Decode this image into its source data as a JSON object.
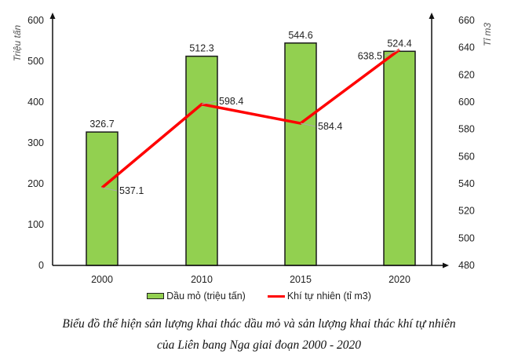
{
  "chart_data": {
    "type": "bar+line",
    "title": "Biểu đồ thể hiện sản lượng khai thác dầu mỏ và sản lượng khai thác khí tự nhiên của Liên bang Nga giai đoạn 2000 - 2020",
    "categories": [
      "2000",
      "2010",
      "2015",
      "2020"
    ],
    "series": [
      {
        "name": "Dầu mỏ (triệu tấn)",
        "type": "bar",
        "axis": "left",
        "color": "#92d050",
        "values": [
          326.7,
          512.3,
          544.6,
          524.4
        ]
      },
      {
        "name": "Khí tự nhiên (tỉ m3)",
        "type": "line",
        "axis": "right",
        "color": "#ff0000",
        "values": [
          537.1,
          598.4,
          584.4,
          638.5
        ]
      }
    ],
    "left_axis": {
      "label": "Triệu tấn",
      "ylim": [
        0,
        600
      ],
      "ticks": [
        0,
        100,
        200,
        300,
        400,
        500,
        600
      ]
    },
    "right_axis": {
      "label": "Tỉ m3",
      "ylim": [
        480,
        660
      ],
      "ticks": [
        480,
        500,
        520,
        540,
        560,
        580,
        600,
        620,
        640,
        660
      ]
    },
    "grid": false,
    "legend_position": "bottom"
  },
  "axes": {
    "left_title": "Triệu tấn",
    "right_title": "Tỉ m3"
  },
  "legend": {
    "bar_label": "Dầu mỏ (triệu tấn)",
    "line_label": "Khí tự nhiên (tỉ m3)"
  },
  "caption": {
    "line1": "Biểu đồ thể hiện sản lượng khai thác dầu mỏ và sản lượng khai thác khí tự nhiên",
    "line2": "của Liên bang Nga giai đoạn 2000 - 2020"
  }
}
